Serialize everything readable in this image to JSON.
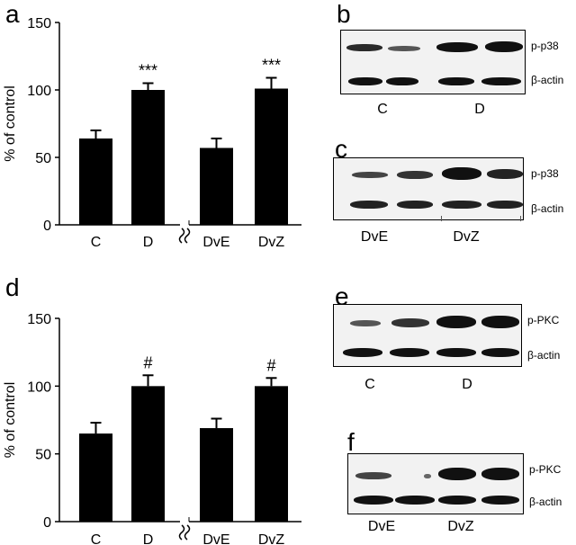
{
  "panels": {
    "a": "a",
    "b": "b",
    "c": "c",
    "d": "d",
    "e": "e",
    "f": "f"
  },
  "chart_data": [
    {
      "type": "bar",
      "panel": "a",
      "categories": [
        "C",
        "D",
        "DvE",
        "DvZ"
      ],
      "values": [
        64,
        100,
        57,
        101
      ],
      "errors": [
        6,
        5,
        7,
        8
      ],
      "annotations": [
        "",
        "***",
        "",
        "***"
      ],
      "ylabel": "% of control",
      "yticks": [
        0,
        50,
        100,
        150
      ],
      "ylim": [
        0,
        150
      ],
      "axis_break": true
    },
    {
      "type": "bar",
      "panel": "d",
      "categories": [
        "C",
        "D",
        "DvE",
        "DvZ"
      ],
      "values": [
        65,
        100,
        69,
        100
      ],
      "errors": [
        8,
        8,
        7,
        6
      ],
      "annotations": [
        "",
        "#",
        "",
        "#"
      ],
      "ylabel": "% of control",
      "yticks": [
        0,
        50,
        100,
        150
      ],
      "ylim": [
        0,
        150
      ],
      "axis_break": true
    }
  ],
  "blots": {
    "b": {
      "protein_label": "p-p38",
      "control_label": "β-actin",
      "lanes": [
        "C",
        "D"
      ]
    },
    "c": {
      "protein_label": "p-p38",
      "control_label": "β-actin",
      "lanes": [
        "DvE",
        "DvZ"
      ]
    },
    "e": {
      "protein_label": "p-PKC",
      "control_label": "β-actin",
      "lanes": [
        "C",
        "D"
      ]
    },
    "f": {
      "protein_label": "p-PKC",
      "control_label": "β-actin",
      "lanes": [
        "DvE",
        "DvZ"
      ]
    }
  }
}
